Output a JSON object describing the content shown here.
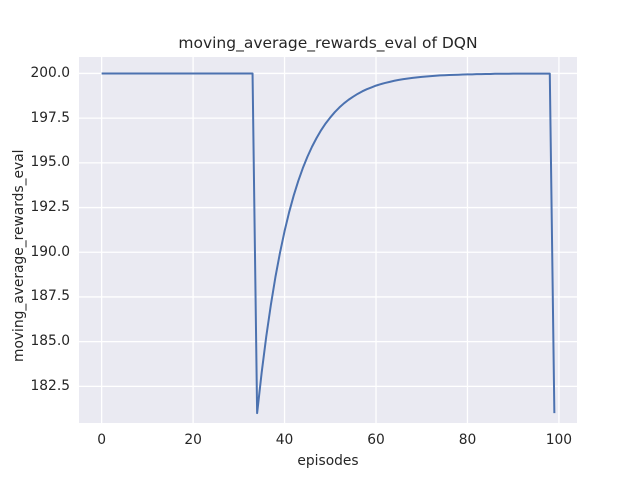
{
  "chart_data": {
    "type": "line",
    "title": "moving_average_rewards_eval of DQN",
    "xlabel": "episodes",
    "ylabel": "moving_average_rewards_eval",
    "x_ticks": [
      0,
      20,
      40,
      60,
      80,
      100
    ],
    "x_tick_labels": [
      "0",
      "20",
      "40",
      "60",
      "80",
      "100"
    ],
    "y_ticks": [
      182.5,
      185.0,
      187.5,
      190.0,
      192.5,
      195.0,
      197.5,
      200.0
    ],
    "y_tick_labels": [
      "182.5",
      "185.0",
      "187.5",
      "190.0",
      "192.5",
      "195.0",
      "197.5",
      "200.0"
    ],
    "xlim": [
      -4.95,
      103.95
    ],
    "ylim": [
      180.45,
      200.92
    ],
    "grid": true,
    "legend_position": "none",
    "colors": {
      "line": "#4C72B0",
      "axes_background": "#EAEAF2",
      "gridline": "#FFFFFF",
      "text": "#262626",
      "figure_background": "#FFFFFF"
    },
    "series": [
      {
        "name": "moving_average_rewards_eval",
        "x": [
          0,
          1,
          2,
          3,
          4,
          5,
          6,
          7,
          8,
          9,
          10,
          11,
          12,
          13,
          14,
          15,
          16,
          17,
          18,
          19,
          20,
          21,
          22,
          23,
          24,
          25,
          26,
          27,
          28,
          29,
          30,
          31,
          32,
          33,
          34,
          35,
          36,
          37,
          38,
          39,
          40,
          41,
          42,
          43,
          44,
          45,
          46,
          47,
          48,
          49,
          50,
          51,
          52,
          53,
          54,
          55,
          56,
          57,
          58,
          59,
          60,
          61,
          62,
          63,
          64,
          65,
          66,
          67,
          68,
          69,
          70,
          71,
          72,
          73,
          74,
          75,
          76,
          77,
          78,
          79,
          80,
          81,
          82,
          83,
          84,
          85,
          86,
          87,
          88,
          89,
          90,
          91,
          92,
          93,
          94,
          95,
          96,
          97,
          98,
          99
        ],
        "y": [
          200.0,
          200.0,
          200.0,
          200.0,
          200.0,
          200.0,
          200.0,
          200.0,
          200.0,
          200.0,
          200.0,
          200.0,
          200.0,
          200.0,
          200.0,
          200.0,
          200.0,
          200.0,
          200.0,
          200.0,
          200.0,
          200.0,
          200.0,
          200.0,
          200.0,
          200.0,
          200.0,
          200.0,
          200.0,
          200.0,
          200.0,
          200.0,
          200.0,
          200.0,
          181.0,
          183.28,
          185.29,
          187.05,
          188.61,
          189.97,
          191.18,
          192.24,
          193.17,
          193.99,
          194.71,
          195.34,
          195.9,
          196.39,
          196.83,
          197.21,
          197.54,
          197.84,
          198.1,
          198.33,
          198.53,
          198.7,
          198.86,
          199.0,
          199.12,
          199.22,
          199.32,
          199.4,
          199.47,
          199.53,
          199.59,
          199.64,
          199.68,
          199.72,
          199.75,
          199.78,
          199.81,
          199.83,
          199.85,
          199.87,
          199.89,
          199.9,
          199.91,
          199.92,
          199.93,
          199.94,
          199.95,
          199.95,
          199.96,
          199.96,
          199.97,
          199.97,
          199.98,
          199.98,
          199.98,
          199.98,
          199.99,
          199.99,
          199.99,
          199.99,
          199.99,
          199.99,
          199.99,
          199.99,
          199.99,
          181.0
        ]
      }
    ]
  }
}
